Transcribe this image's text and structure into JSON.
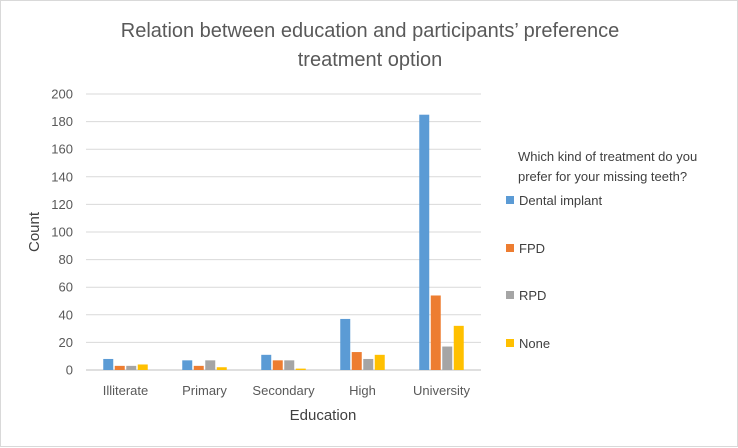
{
  "chart_data": {
    "type": "bar",
    "title_line1": "Relation between education and participants’ preference",
    "title_line2": "treatment option",
    "xlabel": "Education",
    "ylabel": "Count",
    "categories": [
      "Illiterate",
      "Primary",
      "Secondary",
      "High",
      "University"
    ],
    "ylim": [
      0,
      200
    ],
    "yticks": [
      0,
      20,
      40,
      60,
      80,
      100,
      120,
      140,
      160,
      180,
      200
    ],
    "grid": true,
    "legend_position": "right",
    "legend_title_line1": "Which kind of treatment do you",
    "legend_title_line2": "prefer for your missing teeth?",
    "series": [
      {
        "name": "Dental implant",
        "color": "#5b9bd5",
        "values": [
          8,
          7,
          11,
          37,
          185
        ]
      },
      {
        "name": "FPD",
        "color": "#ed7d31",
        "values": [
          3,
          3,
          7,
          13,
          54
        ]
      },
      {
        "name": "RPD",
        "color": "#a5a5a5",
        "values": [
          3,
          7,
          7,
          8,
          17
        ]
      },
      {
        "name": "None",
        "color": "#ffc000",
        "values": [
          4,
          2,
          1,
          11,
          32
        ]
      }
    ]
  }
}
